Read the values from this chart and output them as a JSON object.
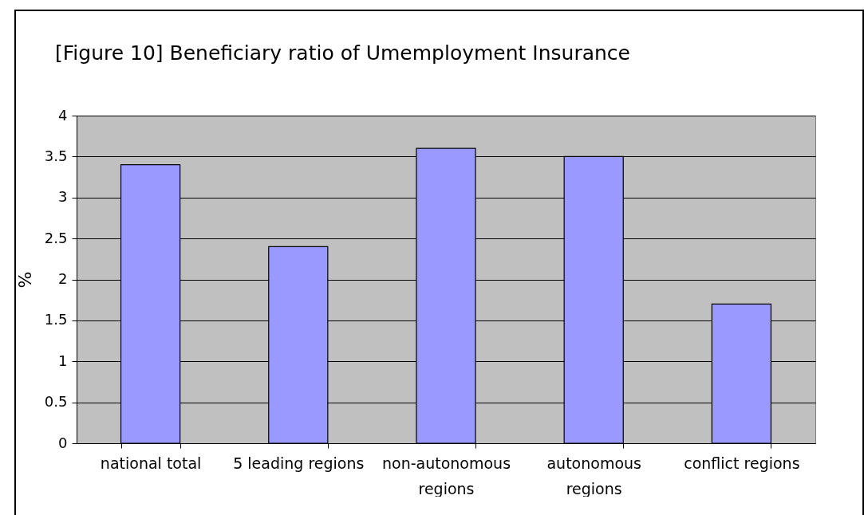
{
  "chart_data": {
    "type": "bar",
    "title": "[Figure 10] Beneficiary ratio of Umemployment Insurance",
    "ylabel": "%",
    "categories": [
      "national total",
      "5 leading regions",
      "non-autonomous regions",
      "autonomous regions",
      "conflict regions"
    ],
    "values": [
      3.4,
      2.4,
      3.6,
      3.5,
      1.7
    ],
    "color": "#9999ff",
    "ylim": [
      0,
      4
    ],
    "yticks": [
      0,
      0.5,
      1,
      1.5,
      2,
      2.5,
      3,
      3.5,
      4
    ],
    "grid": "y"
  }
}
